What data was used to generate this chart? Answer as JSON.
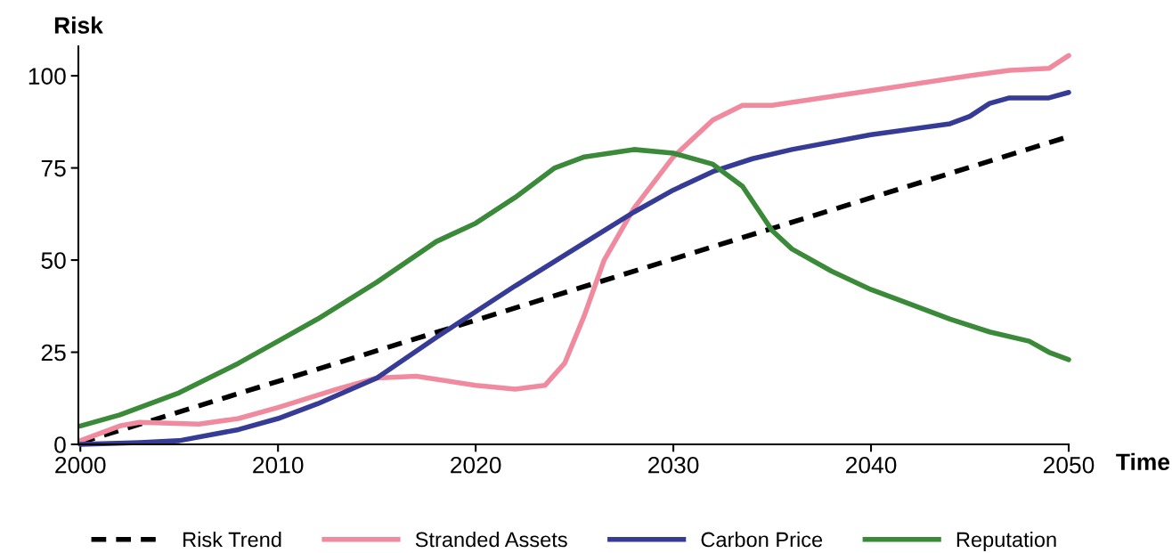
{
  "chart_data": {
    "type": "line",
    "xlabel": "Time",
    "ylabel": "Risk",
    "xlim": [
      1999.9,
      2050
    ],
    "xticks": [
      2000,
      2010,
      2020,
      2030,
      2040,
      2050
    ],
    "ylim": [
      0,
      108
    ],
    "yticks": [
      0,
      25,
      50,
      75,
      100
    ],
    "grid": false,
    "legend": "bottom",
    "marker": "none",
    "series": [
      {
        "name": "Risk Trend",
        "color": "#000000",
        "line_style": "dashed",
        "x": [
          2000,
          2050
        ],
        "values": [
          0.5,
          83.5
        ]
      },
      {
        "name": "Stranded Assets",
        "color": "#f08a9e",
        "line_style": "solid",
        "x": [
          2000,
          2002,
          2003,
          2006,
          2008,
          2010,
          2013,
          2015,
          2017,
          2020,
          2022,
          2023.5,
          2024.5,
          2025.5,
          2026.5,
          2028,
          2030,
          2032,
          2033.5,
          2035,
          2040,
          2045,
          2047,
          2049,
          2050
        ],
        "values": [
          1,
          5,
          6,
          5.5,
          7,
          10,
          15,
          18,
          18.5,
          16,
          15,
          16,
          22,
          35,
          50,
          64,
          78,
          88,
          92,
          92,
          96,
          100,
          101.5,
          102,
          105.5
        ]
      },
      {
        "name": "Carbon Price",
        "color": "#363c96",
        "line_style": "solid",
        "x": [
          2000,
          2003,
          2005,
          2008,
          2010,
          2012,
          2015,
          2018,
          2020,
          2022,
          2025,
          2028,
          2030,
          2032,
          2034,
          2036,
          2040,
          2044,
          2045,
          2046,
          2047,
          2049,
          2050
        ],
        "values": [
          0,
          0.5,
          1,
          4,
          7,
          11,
          18,
          29,
          36,
          43,
          53,
          63,
          69,
          74,
          77.5,
          80,
          84,
          87,
          89,
          92.5,
          94,
          94,
          95.5
        ]
      },
      {
        "name": "Reputation",
        "color": "#3a8a3a",
        "line_style": "solid",
        "x": [
          2000,
          2002,
          2005,
          2008,
          2010,
          2012,
          2015,
          2018,
          2020,
          2022,
          2024,
          2025.5,
          2028,
          2030,
          2032,
          2033.5,
          2035,
          2036,
          2038,
          2040,
          2044,
          2046,
          2048,
          2049,
          2050
        ],
        "values": [
          5,
          8,
          14,
          22,
          28,
          34,
          44,
          55,
          60,
          67,
          75,
          78,
          80,
          79,
          76,
          70,
          58,
          53,
          47,
          42,
          34,
          30.5,
          28,
          25,
          23
        ]
      }
    ]
  }
}
